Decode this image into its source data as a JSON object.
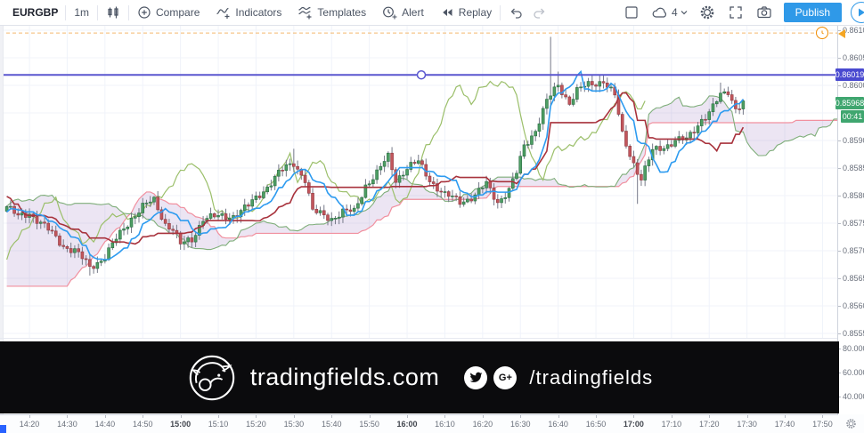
{
  "toolbar": {
    "symbol": "EURGBP",
    "interval": "1m",
    "buttons": {
      "compare": "Compare",
      "indicators": "Indicators",
      "templates": "Templates",
      "alert": "Alert",
      "replay": "Replay"
    },
    "cloud_count": "4",
    "publish": "Publish"
  },
  "labels": {
    "hline_price": "0.86019",
    "last_price": "0.85968",
    "countdown": "00:41"
  },
  "axis": {
    "price_ticks": [
      "0.86100",
      "0.86050",
      "0.86000",
      "0.85900",
      "0.85850",
      "0.85800",
      "0.85750",
      "0.85700",
      "0.85650",
      "0.85600",
      "0.85550"
    ],
    "indicator_ticks": [
      "80.0000",
      "60.0000",
      "40.0000"
    ],
    "time_ticks": [
      {
        "t": "14:20"
      },
      {
        "t": "14:30"
      },
      {
        "t": "14:40"
      },
      {
        "t": "14:50"
      },
      {
        "t": "15:00",
        "bold": true
      },
      {
        "t": "15:10"
      },
      {
        "t": "15:20"
      },
      {
        "t": "15:30"
      },
      {
        "t": "15:40"
      },
      {
        "t": "15:50"
      },
      {
        "t": "16:00",
        "bold": true
      },
      {
        "t": "16:10"
      },
      {
        "t": "16:20"
      },
      {
        "t": "16:30"
      },
      {
        "t": "16:40"
      },
      {
        "t": "16:50"
      },
      {
        "t": "17:00",
        "bold": true
      },
      {
        "t": "17:10"
      },
      {
        "t": "17:20"
      },
      {
        "t": "17:30"
      },
      {
        "t": "17:40"
      },
      {
        "t": "17:50"
      }
    ]
  },
  "watermark": {
    "site": "tradingfields.com",
    "handle": "/tradingfields"
  },
  "chart_data": {
    "type": "candlestick",
    "symbol": "EURGBP",
    "interval": "1m",
    "visible_time_range": [
      "14:14",
      "17:52"
    ],
    "visible_price_range": [
      0.85545,
      0.8611
    ],
    "overlays": [
      "Ichimoku Cloud"
    ],
    "ichimoku": {
      "conversion": 9,
      "base": 26,
      "lagging": 26,
      "lead": 52,
      "displacement": 26
    },
    "horizontal_line_price": 0.86019,
    "alert_line_price": 0.86095,
    "last_price": 0.85968,
    "lower_pane_scale": [
      80,
      60,
      40
    ],
    "bar_close_keyframes": [
      [
        -80,
        0.856
      ],
      [
        -70,
        0.8545
      ],
      [
        -62,
        0.854
      ],
      [
        -55,
        0.855
      ],
      [
        -48,
        0.8562
      ],
      [
        -42,
        0.8572
      ],
      [
        -36,
        0.858
      ],
      [
        -30,
        0.8588
      ],
      [
        -26,
        0.8585
      ],
      [
        -20,
        0.8578
      ],
      [
        -14,
        0.8574
      ],
      [
        -8,
        0.8577
      ],
      [
        0,
        0.8578
      ],
      [
        3,
        0.8576
      ],
      [
        6,
        0.8577
      ],
      [
        9,
        0.8575
      ],
      [
        12,
        0.8573
      ],
      [
        15,
        0.8571
      ],
      [
        18,
        0.857
      ],
      [
        22,
        0.8567
      ],
      [
        26,
        0.8569
      ],
      [
        30,
        0.8573
      ],
      [
        33,
        0.8576
      ],
      [
        36,
        0.8578
      ],
      [
        39,
        0.8579
      ],
      [
        42,
        0.8575
      ],
      [
        44,
        0.8574
      ],
      [
        46,
        0.8571
      ],
      [
        49,
        0.8572
      ],
      [
        52,
        0.8576
      ],
      [
        56,
        0.8576
      ],
      [
        60,
        0.85765
      ],
      [
        64,
        0.8578
      ],
      [
        68,
        0.8581
      ],
      [
        72,
        0.8584
      ],
      [
        76,
        0.8586
      ],
      [
        79,
        0.8583
      ],
      [
        81,
        0.8577
      ],
      [
        86,
        0.8576
      ],
      [
        89,
        0.8577
      ],
      [
        92,
        0.8577
      ],
      [
        95,
        0.8582
      ],
      [
        98,
        0.8584
      ],
      [
        101,
        0.8587
      ],
      [
        103,
        0.8583
      ],
      [
        106,
        0.8585
      ],
      [
        109,
        0.8586
      ],
      [
        112,
        0.8583
      ],
      [
        116,
        0.858
      ],
      [
        120,
        0.8579
      ],
      [
        124,
        0.858
      ],
      [
        127,
        0.8582
      ],
      [
        130,
        0.8579
      ],
      [
        133,
        0.8581
      ],
      [
        135,
        0.8584
      ],
      [
        137,
        0.8589
      ],
      [
        140,
        0.8592
      ],
      [
        143,
        0.8597
      ],
      [
        146,
        0.86
      ],
      [
        149,
        0.8597
      ],
      [
        151,
        0.8599
      ],
      [
        154,
        0.86
      ],
      [
        158,
        0.8601
      ],
      [
        161,
        0.8598
      ],
      [
        163,
        0.8591
      ],
      [
        166,
        0.8586
      ],
      [
        168,
        0.8583
      ],
      [
        171,
        0.8588
      ],
      [
        174,
        0.8589
      ],
      [
        177,
        0.859
      ],
      [
        180,
        0.859
      ],
      [
        182,
        0.8592
      ],
      [
        184,
        0.8594
      ],
      [
        186,
        0.8595
      ],
      [
        189,
        0.8598
      ],
      [
        191,
        0.8599
      ],
      [
        193,
        0.8596
      ],
      [
        195,
        0.85968
      ]
    ],
    "extra_wicks": {
      "22": {
        "low": 0.85655
      },
      "76": {
        "high": 0.85885
      },
      "101": {
        "high": 0.8588
      },
      "144": {
        "high": 0.86088
      },
      "146": {
        "high": 0.86025
      },
      "158": {
        "high": 0.8602
      },
      "167": {
        "low": 0.85785
      },
      "189": {
        "high": 0.86005
      }
    },
    "colors": {
      "up_body": "#4d9e63",
      "up_border": "#2a6b42",
      "down_body": "#c2565c",
      "down_border": "#8f3a42",
      "wick": "#757988",
      "tenkan": "#2d9bf0",
      "kijun": "#a8323c",
      "chikou": "#9bbf6a",
      "lead_a": "#7fae7a",
      "lead_b": "#f1909f",
      "cloud_fill": "rgba(135,95,180,0.16)",
      "hline": "#5a57cf",
      "alert_line": "#f0a13f",
      "grid": "#f0f3fa"
    }
  }
}
